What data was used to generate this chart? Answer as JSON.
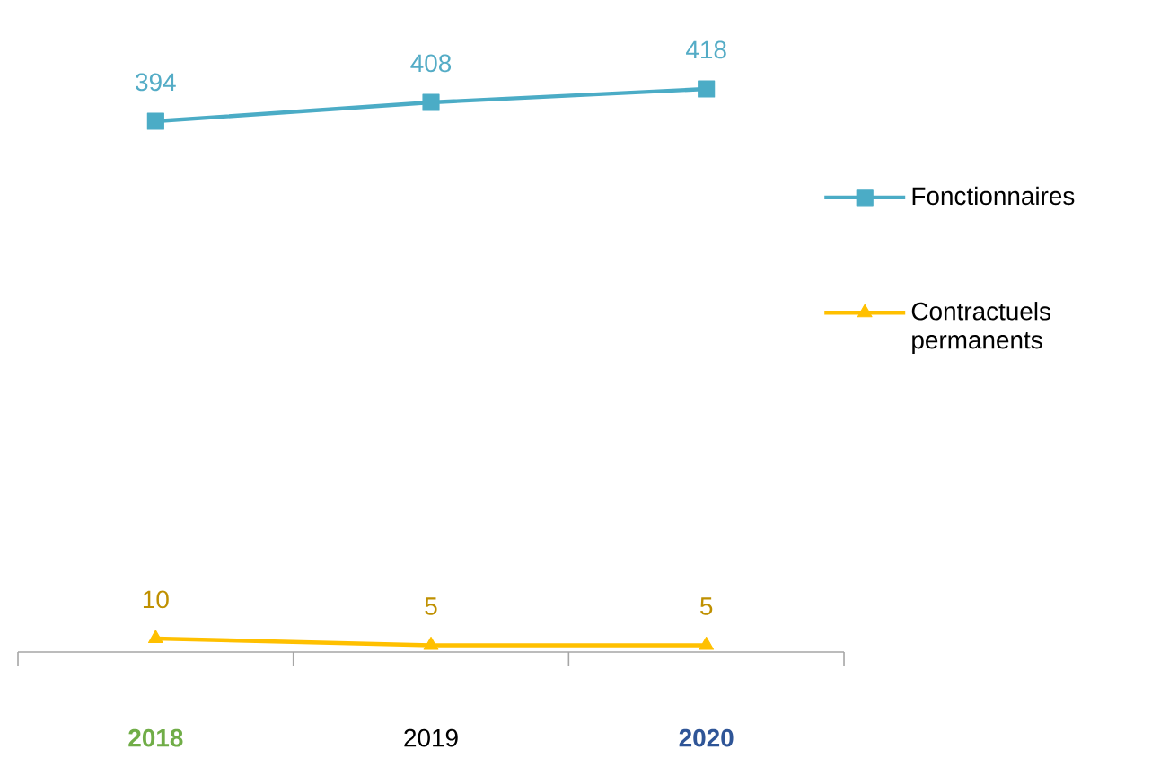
{
  "chart_data": {
    "type": "line",
    "categories": [
      "2018",
      "2019",
      "2020"
    ],
    "series": [
      {
        "name": "Fonctionnaires",
        "color": "#4bacc6",
        "values": [
          394,
          408,
          418
        ],
        "marker": "square"
      },
      {
        "name": "Contractuels permanents",
        "color": "#ffc000",
        "values": [
          10,
          5,
          5
        ],
        "marker": "triangle"
      }
    ],
    "data_labels": true,
    "legend": "right",
    "tick_labels": "x"
  }
}
